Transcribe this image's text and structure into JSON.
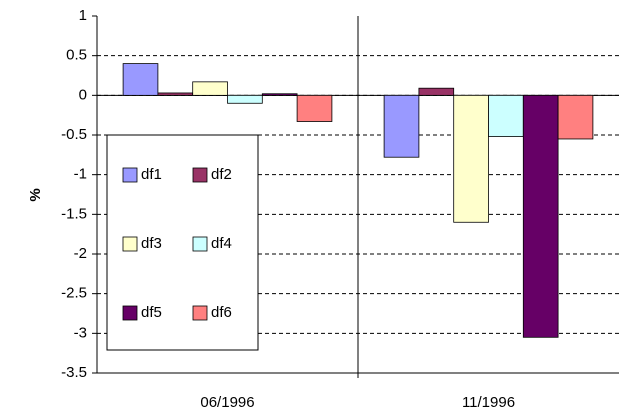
{
  "chart_data": {
    "type": "bar",
    "y_label": "%",
    "categories": [
      "06/1996",
      "11/1996"
    ],
    "series": [
      {
        "name": "df1",
        "color": "#9999ff",
        "values": [
          0.4,
          -0.78
        ]
      },
      {
        "name": "df2",
        "color": "#993366",
        "values": [
          0.03,
          0.09
        ]
      },
      {
        "name": "df3",
        "color": "#ffffcc",
        "values": [
          0.17,
          -1.6
        ]
      },
      {
        "name": "df4",
        "color": "#ccffff",
        "values": [
          -0.1,
          -0.52
        ]
      },
      {
        "name": "df5",
        "color": "#660066",
        "values": [
          0.02,
          -3.05
        ]
      },
      {
        "name": "df6",
        "color": "#ff8080",
        "values": [
          -0.33,
          -0.55
        ]
      }
    ],
    "ylim": [
      -3.5,
      1
    ],
    "yticks": [
      -3.5,
      -3,
      -2.5,
      -2,
      -1.5,
      -1,
      -0.5,
      0,
      0.5,
      1
    ],
    "grid": true,
    "legend": "left"
  }
}
